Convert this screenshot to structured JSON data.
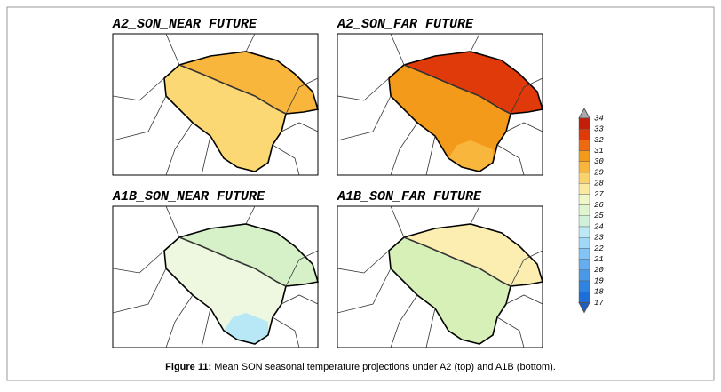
{
  "panels": [
    {
      "title": "A2_SON_NEAR FUTURE"
    },
    {
      "title": "A2_SON_FAR FUTURE"
    },
    {
      "title": "A1B_SON_NEAR FUTURE"
    },
    {
      "title": "A1B_SON_FAR FUTURE"
    }
  ],
  "colorbar": {
    "ticks": [
      34,
      33,
      32,
      31,
      30,
      29,
      28,
      27,
      26,
      25,
      24,
      23,
      22,
      21,
      20,
      19,
      18,
      17
    ],
    "colors": [
      "#c41e0a",
      "#e03a0a",
      "#ee6a10",
      "#f39a1a",
      "#f8b63c",
      "#fbd36c",
      "#fbe9a0",
      "#f0f7c6",
      "#dff5cf",
      "#d0f0d8",
      "#bde9f5",
      "#a0d8f8",
      "#82c4f5",
      "#64aef0",
      "#4a99e8",
      "#2f84e0",
      "#1e6fd9"
    ]
  },
  "caption": {
    "label": "Figure 11:",
    "text": "Mean SON seasonal temperature projections under A2 (top) and A1B (bottom)."
  }
}
